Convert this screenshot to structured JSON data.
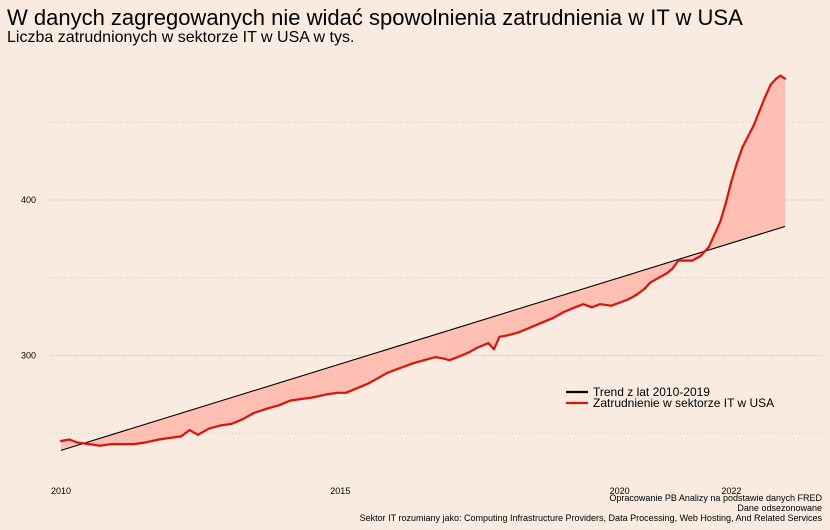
{
  "title": "W danych zagregowanych nie widać spowolnienia zatrudnienia w IT w USA",
  "subtitle": "Liczba zatrudnionych w sektorze IT w USA w tys.",
  "caption": [
    "Opracowanie PB Analizy na podstawie danych FRED",
    "Dane odsezonowane",
    "Sektor IT rozumiany jako: Computing Infrastructure Providers, Data Processing, Web Hosting, And Related Services"
  ],
  "colors": {
    "background": "#f9ebdf",
    "employment": "#e0110b",
    "trend": "#000000",
    "fill": "#ffbfb2",
    "grid": "#b5aaa0"
  },
  "chart_data": {
    "type": "line",
    "title": "W danych zagregowanych nie widać spowolnienia zatrudnienia w IT w USA",
    "subtitle": "Liczba zatrudnionych w sektorze IT w USA w tys.",
    "xlabel": "",
    "ylabel": "",
    "xlim": [
      2010.0,
      2022.96
    ],
    "ylim": [
      235,
      490
    ],
    "x_ticks": [
      2010,
      2015,
      2020,
      2022
    ],
    "y_ticks": [
      300,
      400
    ],
    "grid": "horizontal dotted",
    "legend_position": "bottom-right",
    "legend": [
      "Trend z lat 2010-2019",
      "Zatrudnienie w sektorze IT w USA"
    ],
    "series": [
      {
        "name": "Zatrudnienie w sektorze IT w USA",
        "kind": "employment",
        "points": [
          [
            2010.0,
            245
          ],
          [
            2010.15,
            246
          ],
          [
            2010.3,
            244
          ],
          [
            2010.5,
            243
          ],
          [
            2010.7,
            242
          ],
          [
            2010.9,
            243
          ],
          [
            2011.1,
            243
          ],
          [
            2011.3,
            243
          ],
          [
            2011.5,
            244
          ],
          [
            2011.75,
            246
          ],
          [
            2011.95,
            247
          ],
          [
            2012.15,
            248
          ],
          [
            2012.3,
            252
          ],
          [
            2012.45,
            249
          ],
          [
            2012.65,
            253
          ],
          [
            2012.85,
            255
          ],
          [
            2013.05,
            256
          ],
          [
            2013.25,
            259
          ],
          [
            2013.45,
            263
          ],
          [
            2013.7,
            266
          ],
          [
            2013.9,
            268
          ],
          [
            2014.1,
            271
          ],
          [
            2014.3,
            272
          ],
          [
            2014.5,
            273
          ],
          [
            2014.75,
            275
          ],
          [
            2014.95,
            276
          ],
          [
            2015.1,
            276
          ],
          [
            2015.3,
            279
          ],
          [
            2015.5,
            282
          ],
          [
            2015.7,
            286
          ],
          [
            2015.85,
            289
          ],
          [
            2016.0,
            291
          ],
          [
            2016.15,
            293
          ],
          [
            2016.3,
            295
          ],
          [
            2016.5,
            297
          ],
          [
            2016.7,
            299
          ],
          [
            2016.85,
            298
          ],
          [
            2016.95,
            297
          ],
          [
            2017.1,
            299
          ],
          [
            2017.3,
            302
          ],
          [
            2017.45,
            305
          ],
          [
            2017.65,
            308
          ],
          [
            2017.75,
            304
          ],
          [
            2017.85,
            312
          ],
          [
            2018.0,
            313
          ],
          [
            2018.2,
            315
          ],
          [
            2018.4,
            318
          ],
          [
            2018.6,
            321
          ],
          [
            2018.8,
            324
          ],
          [
            2019.0,
            328
          ],
          [
            2019.2,
            331
          ],
          [
            2019.35,
            333
          ],
          [
            2019.5,
            331
          ],
          [
            2019.65,
            333
          ],
          [
            2019.85,
            332
          ],
          [
            2020.0,
            334
          ],
          [
            2020.15,
            336
          ],
          [
            2020.3,
            339
          ],
          [
            2020.45,
            343
          ],
          [
            2020.55,
            347
          ],
          [
            2020.7,
            350
          ],
          [
            2020.85,
            353
          ],
          [
            2020.95,
            356
          ],
          [
            2021.05,
            361
          ],
          [
            2021.15,
            361
          ],
          [
            2021.3,
            361
          ],
          [
            2021.45,
            364
          ],
          [
            2021.6,
            370
          ],
          [
            2021.7,
            378
          ],
          [
            2021.8,
            386
          ],
          [
            2021.9,
            398
          ],
          [
            2022.0,
            412
          ],
          [
            2022.1,
            424
          ],
          [
            2022.2,
            434
          ],
          [
            2022.3,
            441
          ],
          [
            2022.4,
            448
          ],
          [
            2022.5,
            457
          ],
          [
            2022.6,
            466
          ],
          [
            2022.7,
            474
          ],
          [
            2022.8,
            478
          ],
          [
            2022.88,
            480
          ],
          [
            2022.96,
            478
          ]
        ]
      },
      {
        "name": "Trend z lat 2010-2019",
        "kind": "trend",
        "points": [
          [
            2010.0,
            239
          ],
          [
            2022.96,
            383
          ]
        ]
      }
    ]
  }
}
